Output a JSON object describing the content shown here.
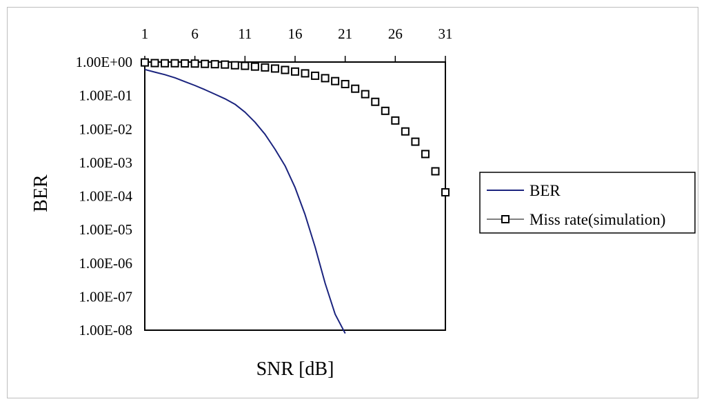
{
  "chart_data": {
    "type": "line",
    "title": "",
    "xlabel": "SNR [dB]",
    "ylabel": "BER",
    "xlim": [
      1,
      31
    ],
    "ylim": [
      1e-08,
      1
    ],
    "yscale": "log",
    "x_axis_position": "top",
    "x_ticks": [
      1,
      6,
      11,
      16,
      21,
      26,
      31
    ],
    "x_tick_labels": [
      "1",
      "6",
      "11",
      "16",
      "21",
      "26",
      "31"
    ],
    "y_ticks": [
      1,
      0.1,
      0.01,
      0.001,
      0.0001,
      1e-05,
      1e-06,
      1e-07,
      1e-08
    ],
    "y_tick_labels": [
      "1.00E+00",
      "1.00E-01",
      "1.00E-02",
      "1.00E-03",
      "1.00E-04",
      "1.00E-05",
      "1.00E-06",
      "1.00E-07",
      "1.00E-08"
    ],
    "grid": false,
    "legend_position": "right",
    "series": [
      {
        "name": "BER",
        "style": "line",
        "color": "#1a237e",
        "x": [
          1,
          2,
          3,
          4,
          5,
          6,
          7,
          8,
          9,
          10,
          11,
          12,
          13,
          14,
          15,
          16,
          17,
          18,
          19,
          20,
          21
        ],
        "y": [
          0.6,
          0.5,
          0.42,
          0.34,
          0.26,
          0.2,
          0.15,
          0.11,
          0.08,
          0.055,
          0.032,
          0.016,
          0.007,
          0.0025,
          0.0008,
          0.00018,
          2.8e-05,
          3e-06,
          2.5e-07,
          3e-08,
          8e-09
        ]
      },
      {
        "name": "Miss rate(simulation)",
        "style": "markers",
        "marker": "square-open",
        "color": "#000000",
        "x": [
          1,
          2,
          3,
          4,
          5,
          6,
          7,
          8,
          9,
          10,
          11,
          12,
          13,
          14,
          15,
          16,
          17,
          18,
          19,
          20,
          21,
          22,
          23,
          24,
          25,
          26,
          27,
          28,
          29,
          30,
          31
        ],
        "y": [
          0.97,
          0.93,
          0.92,
          0.92,
          0.91,
          0.9,
          0.88,
          0.86,
          0.84,
          0.8,
          0.77,
          0.73,
          0.69,
          0.64,
          0.58,
          0.52,
          0.46,
          0.39,
          0.33,
          0.27,
          0.22,
          0.16,
          0.11,
          0.065,
          0.035,
          0.018,
          0.0085,
          0.0042,
          0.0018,
          0.00055,
          0.00013
        ]
      }
    ]
  }
}
